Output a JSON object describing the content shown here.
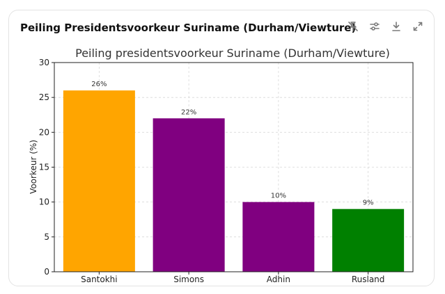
{
  "card": {
    "title": "Peiling Presidentsvoorkeur Suriname (Durham/Viewture)"
  },
  "toolbar": {
    "icons": [
      "unpin-icon",
      "settings-sliders-icon",
      "download-icon",
      "expand-icon"
    ]
  },
  "chart_data": {
    "type": "bar",
    "title": "Peiling presidentsvoorkeur Suriname (Durham/Viewture)",
    "xlabel": "",
    "ylabel": "Voorkeur (%)",
    "categories": [
      "Santokhi",
      "Simons",
      "Adhin",
      "Rusland"
    ],
    "values": [
      26,
      22,
      10,
      9
    ],
    "data_labels": [
      "26%",
      "22%",
      "10%",
      "9%"
    ],
    "colors": [
      "#FFA500",
      "#800080",
      "#800080",
      "#008000"
    ],
    "ylim": [
      0,
      30
    ],
    "yticks": [
      0,
      5,
      10,
      15,
      20,
      25,
      30
    ],
    "grid": true,
    "legend": "none"
  }
}
